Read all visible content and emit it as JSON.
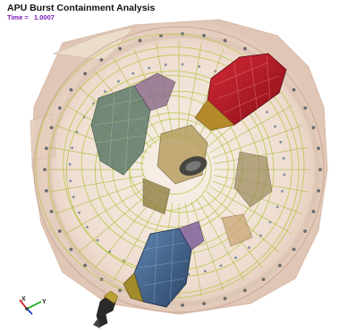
{
  "viewer": {
    "title": "APU Burst Containment Analysis",
    "time_label": "Time =",
    "time_value": "1.0007"
  },
  "triad": {
    "x_label": "X",
    "y_label": "Y",
    "x_color": "#cc1111",
    "y_color": "#11aa11",
    "z_color": "#1133cc"
  },
  "colors": {
    "casing": "#e9d3c2",
    "wire": "#b8c63c",
    "bolt": "#6a6a6a",
    "fragment_red": "#c01828",
    "fragment_blue": "#3a5f8a",
    "fragment_olive": "#8a7a3a"
  }
}
